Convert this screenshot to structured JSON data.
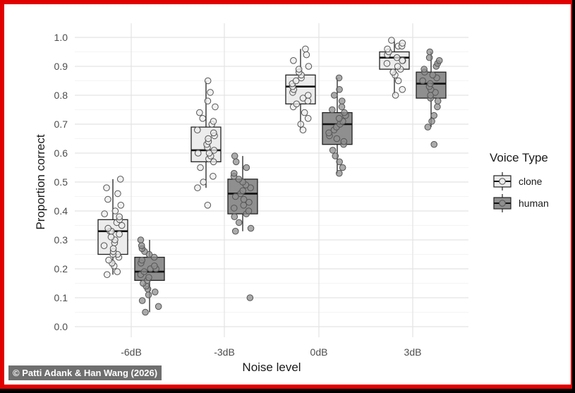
{
  "credit": "© Patti Adank & Han Wang (2026)",
  "colors": {
    "clone": "#ececec",
    "human": "#8f8f8f",
    "frame": "#e00000",
    "grid": "#e6e6e6"
  },
  "chart_data": {
    "type": "box",
    "title": "",
    "xlabel": "Noise level",
    "ylabel": "Proportion correct",
    "categories": [
      "-6dB",
      "-3dB",
      "0dB",
      "3dB"
    ],
    "ylim": [
      0.0,
      1.0
    ],
    "yticks": [
      "0.0",
      "0.1",
      "0.2",
      "0.3",
      "0.4",
      "0.5",
      "0.6",
      "0.7",
      "0.8",
      "0.9",
      "1.0"
    ],
    "grid": true,
    "legend": {
      "title": "Voice Type",
      "position": "right",
      "entries": [
        "clone",
        "human"
      ]
    },
    "series": [
      {
        "name": "clone",
        "boxes": [
          {
            "min": 0.18,
            "q1": 0.25,
            "median": 0.33,
            "q3": 0.37,
            "max": 0.51
          },
          {
            "min": 0.48,
            "q1": 0.57,
            "median": 0.61,
            "q3": 0.69,
            "max": 0.85
          },
          {
            "min": 0.68,
            "q1": 0.77,
            "median": 0.83,
            "q3": 0.87,
            "max": 0.96
          },
          {
            "min": 0.8,
            "q1": 0.89,
            "median": 0.93,
            "q3": 0.95,
            "max": 0.99
          }
        ],
        "points": [
          [
            0.18,
            0.19,
            0.21,
            0.22,
            0.23,
            0.24,
            0.25,
            0.25,
            0.26,
            0.27,
            0.28,
            0.29,
            0.3,
            0.31,
            0.32,
            0.33,
            0.33,
            0.34,
            0.35,
            0.36,
            0.37,
            0.38,
            0.39,
            0.4,
            0.42,
            0.44,
            0.46,
            0.48,
            0.51
          ],
          [
            0.42,
            0.48,
            0.5,
            0.52,
            0.55,
            0.57,
            0.58,
            0.59,
            0.6,
            0.6,
            0.61,
            0.62,
            0.63,
            0.64,
            0.65,
            0.66,
            0.67,
            0.68,
            0.7,
            0.71,
            0.72,
            0.74,
            0.76,
            0.78,
            0.81,
            0.85
          ],
          [
            0.68,
            0.7,
            0.72,
            0.74,
            0.76,
            0.77,
            0.78,
            0.79,
            0.8,
            0.81,
            0.82,
            0.83,
            0.84,
            0.85,
            0.86,
            0.87,
            0.88,
            0.89,
            0.9,
            0.92,
            0.94,
            0.96
          ],
          [
            0.8,
            0.82,
            0.85,
            0.87,
            0.88,
            0.89,
            0.9,
            0.91,
            0.92,
            0.92,
            0.93,
            0.94,
            0.95,
            0.96,
            0.97,
            0.97,
            0.98,
            0.99
          ]
        ]
      },
      {
        "name": "human",
        "boxes": [
          {
            "min": 0.05,
            "q1": 0.16,
            "median": 0.19,
            "q3": 0.24,
            "max": 0.3
          },
          {
            "min": 0.33,
            "q1": 0.39,
            "median": 0.46,
            "q3": 0.51,
            "max": 0.59
          },
          {
            "min": 0.53,
            "q1": 0.63,
            "median": 0.7,
            "q3": 0.74,
            "max": 0.86
          },
          {
            "min": 0.69,
            "q1": 0.79,
            "median": 0.84,
            "q3": 0.88,
            "max": 0.95
          }
        ],
        "points": [
          [
            0.05,
            0.07,
            0.09,
            0.11,
            0.12,
            0.13,
            0.14,
            0.15,
            0.16,
            0.17,
            0.18,
            0.19,
            0.2,
            0.2,
            0.21,
            0.22,
            0.23,
            0.24,
            0.25,
            0.26,
            0.27,
            0.28,
            0.3
          ],
          [
            0.1,
            0.33,
            0.34,
            0.36,
            0.38,
            0.39,
            0.4,
            0.41,
            0.42,
            0.43,
            0.44,
            0.45,
            0.46,
            0.47,
            0.48,
            0.49,
            0.5,
            0.51,
            0.52,
            0.53,
            0.55,
            0.57,
            0.59
          ],
          [
            0.53,
            0.55,
            0.57,
            0.59,
            0.61,
            0.63,
            0.64,
            0.65,
            0.66,
            0.67,
            0.68,
            0.69,
            0.7,
            0.71,
            0.72,
            0.73,
            0.74,
            0.75,
            0.76,
            0.78,
            0.8,
            0.82,
            0.86
          ],
          [
            0.63,
            0.69,
            0.71,
            0.73,
            0.76,
            0.78,
            0.79,
            0.8,
            0.81,
            0.82,
            0.83,
            0.84,
            0.85,
            0.86,
            0.87,
            0.88,
            0.89,
            0.9,
            0.91,
            0.92,
            0.93,
            0.95
          ]
        ]
      }
    ]
  }
}
